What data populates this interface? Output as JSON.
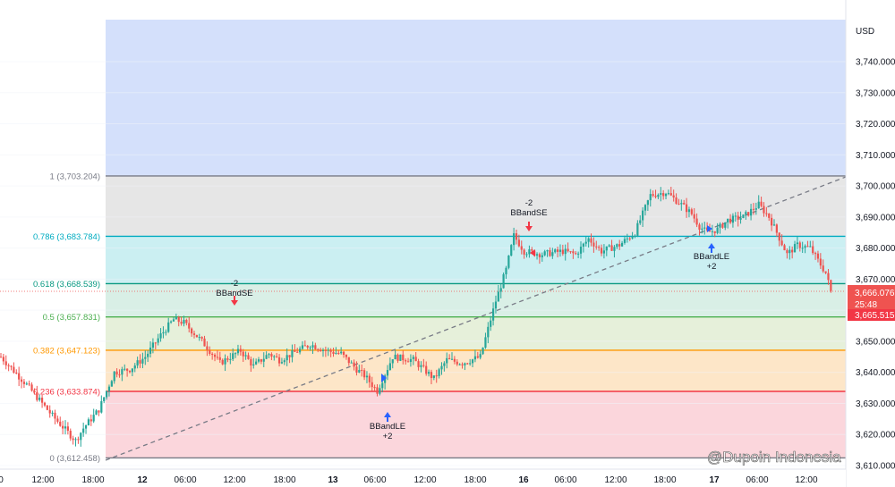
{
  "colors": {
    "up": "#26a69a",
    "down": "#ef5350",
    "bg_top": "#d4e0fb",
    "zone_1_786": "#e6e6e6",
    "zone_786_618": "#cbeff2",
    "zone_618_5": "#d9efe6",
    "zone_5_382": "#e6f0da",
    "zone_382_236": "#fde6c8",
    "zone_236_0": "#fbd6dc",
    "line_1": "#787b86",
    "line_786": "#00acc1",
    "line_618": "#089981",
    "line_5": "#4caf50",
    "line_382": "#ff9800",
    "line_236": "#f23645",
    "line_0": "#787b86",
    "long_arrow": "#2962ff",
    "short_arrow": "#f23645"
  },
  "axis": {
    "currency": "USD",
    "y_ticks": [
      "3,740.000",
      "3,730.000",
      "3,720.000",
      "3,710.000",
      "3,700.000",
      "3,690.000",
      "3,680.000",
      "3,670.000",
      "3,660.000",
      "3,650.000",
      "3,640.000",
      "3,630.000",
      "3,620.000",
      "3,610.000"
    ],
    "x_ticks": [
      {
        "label": "0",
        "bold": false
      },
      {
        "label": "12:00",
        "bold": false
      },
      {
        "label": "18:00",
        "bold": false
      },
      {
        "label": "12",
        "bold": true
      },
      {
        "label": "06:00",
        "bold": false
      },
      {
        "label": "12:00",
        "bold": false
      },
      {
        "label": "18:00",
        "bold": false
      },
      {
        "label": "13",
        "bold": true
      },
      {
        "label": "06:00",
        "bold": false
      },
      {
        "label": "12:00",
        "bold": false
      },
      {
        "label": "18:00",
        "bold": false
      },
      {
        "label": "16",
        "bold": true
      },
      {
        "label": "06:00",
        "bold": false
      },
      {
        "label": "12:00",
        "bold": false
      },
      {
        "label": "18:00",
        "bold": false
      },
      {
        "label": "17",
        "bold": true
      },
      {
        "label": "06:00",
        "bold": false
      },
      {
        "label": "12:00",
        "bold": false
      }
    ]
  },
  "price_tags": {
    "last": "3,666.076",
    "countdown": "25:48",
    "second": "3,665.515"
  },
  "fib_levels": [
    {
      "label": "1 (3,703.204)",
      "ratio": 1,
      "price": 3703.204,
      "color": "#787b86"
    },
    {
      "label": "0.786 (3,683.784)",
      "ratio": 0.786,
      "price": 3683.784,
      "color": "#00acc1"
    },
    {
      "label": "0.618 (3,668.539)",
      "ratio": 0.618,
      "price": 3668.539,
      "color": "#089981"
    },
    {
      "label": "0.5 (3,657.831)",
      "ratio": 0.5,
      "price": 3657.831,
      "color": "#4caf50"
    },
    {
      "label": "0.382 (3,647.123)",
      "ratio": 0.382,
      "price": 3647.123,
      "color": "#ff9800"
    },
    {
      "label": "0.236 (3,633.874)",
      "ratio": 0.236,
      "price": 3633.874,
      "color": "#f23645"
    },
    {
      "label": "0 (3,612.458)",
      "ratio": 0,
      "price": 3612.458,
      "color": "#787b86"
    }
  ],
  "signals": [
    {
      "type": "short",
      "qty": "-2",
      "name": "BBandSE"
    },
    {
      "type": "long",
      "qty": "+2",
      "name": "BBandLE"
    },
    {
      "type": "short",
      "qty": "-2",
      "name": "BBandSE"
    },
    {
      "type": "long",
      "qty": "+2",
      "name": "BBandLE"
    }
  ],
  "watermark": "@Dupoin Indonesia",
  "chart_data": {
    "type": "candlestick",
    "ylim": [
      3605,
      3748
    ],
    "fib_retracement": {
      "from": 3612.458,
      "to": 3703.204
    },
    "close_path": [
      [
        0,
        3645
      ],
      [
        10,
        3636
      ],
      [
        20,
        3626
      ],
      [
        29,
        3618
      ],
      [
        32,
        3622
      ],
      [
        38,
        3628
      ],
      [
        44,
        3640
      ],
      [
        50,
        3641
      ],
      [
        56,
        3645
      ],
      [
        62,
        3652
      ],
      [
        67,
        3657
      ],
      [
        71,
        3656
      ],
      [
        78,
        3650
      ],
      [
        85,
        3643
      ],
      [
        93,
        3647
      ],
      [
        98,
        3642
      ],
      [
        104,
        3646
      ],
      [
        108,
        3644
      ],
      [
        113,
        3646
      ],
      [
        120,
        3649
      ],
      [
        126,
        3647
      ],
      [
        132,
        3646
      ],
      [
        138,
        3641
      ],
      [
        141,
        3639
      ],
      [
        146,
        3634
      ],
      [
        152,
        3645
      ],
      [
        160,
        3644
      ],
      [
        168,
        3638
      ],
      [
        173,
        3644
      ],
      [
        179,
        3643
      ],
      [
        186,
        3645
      ],
      [
        192,
        3663
      ],
      [
        196,
        3673
      ],
      [
        199,
        3684
      ],
      [
        203,
        3679
      ],
      [
        210,
        3678
      ],
      [
        218,
        3679
      ],
      [
        223,
        3678
      ],
      [
        228,
        3683
      ],
      [
        233,
        3679
      ],
      [
        240,
        3681
      ],
      [
        246,
        3685
      ],
      [
        252,
        3697
      ],
      [
        258,
        3698
      ],
      [
        264,
        3694
      ],
      [
        268,
        3691
      ],
      [
        271,
        3687
      ],
      [
        274,
        3685
      ],
      [
        278,
        3686
      ],
      [
        282,
        3689
      ],
      [
        288,
        3690
      ],
      [
        294,
        3694
      ],
      [
        298,
        3690
      ],
      [
        301,
        3685
      ],
      [
        305,
        3678
      ],
      [
        309,
        3681
      ],
      [
        314,
        3680
      ],
      [
        317,
        3676
      ],
      [
        320,
        3672
      ],
      [
        322,
        3666
      ]
    ],
    "last_price": 3666.076
  }
}
